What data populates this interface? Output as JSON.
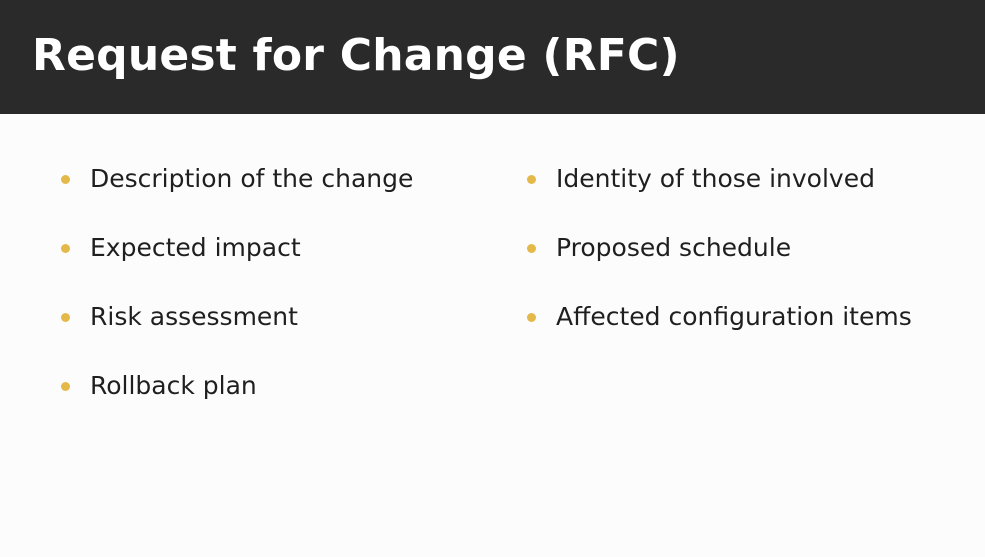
{
  "title": "Request for Change (RFC)",
  "accent_color": "#e5b84a",
  "left_column": {
    "items": [
      {
        "text": "Description of the change"
      },
      {
        "text": "Expected impact"
      },
      {
        "text": "Risk assessment"
      },
      {
        "text": "Rollback plan"
      }
    ]
  },
  "right_column": {
    "items": [
      {
        "text": "Identity of those involved"
      },
      {
        "text": "Proposed schedule"
      },
      {
        "text": "Affected configuration items"
      }
    ]
  }
}
